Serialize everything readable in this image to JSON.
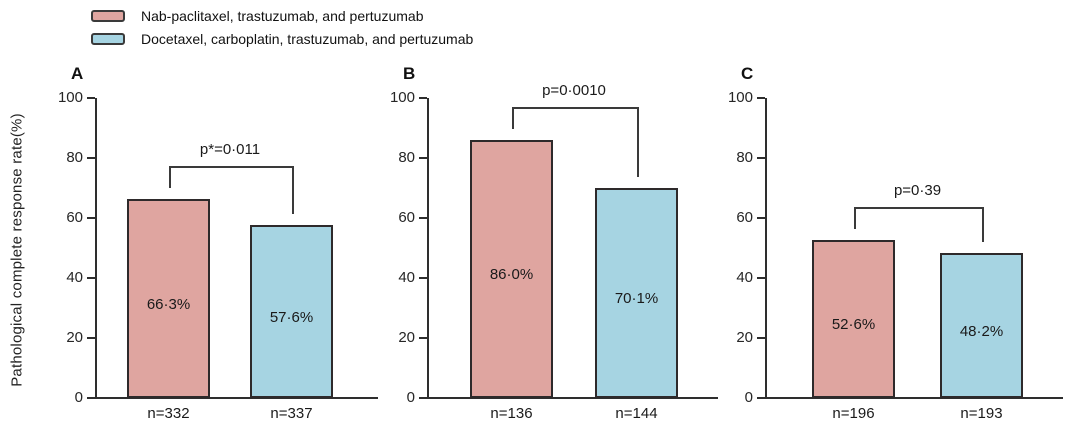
{
  "ylabel": "Pathological complete response rate(%)",
  "legend": {
    "items": [
      {
        "label": "Nab-paclitaxel, trastuzumab, and pertuzumab",
        "color": "#dfa5a0"
      },
      {
        "label": "Docetaxel, carboplatin, trastuzumab, and pertuzumab",
        "color": "#a6d4e2"
      }
    ]
  },
  "colors": {
    "bar_pink": "#dfa5a0",
    "bar_blue": "#a6d4e2",
    "bar_border": "#2e2a2b",
    "axis": "#2e2e2e",
    "bracket": "#3a3a3a",
    "text": "#1a1a1a"
  },
  "chart_data": [
    {
      "type": "bar",
      "panel_label": "A",
      "p_value_text": "p*=0·011",
      "ylabel": "Pathological complete response rate(%)",
      "ylim": [
        0,
        100
      ],
      "yticks": [
        0,
        20,
        40,
        60,
        80,
        100
      ],
      "categories": [
        "n=332",
        "n=337"
      ],
      "series": [
        {
          "name": "Nab-paclitaxel, trastuzumab, and pertuzumab",
          "value": 66.3,
          "bar_label": "66·3%",
          "n": 332
        },
        {
          "name": "Docetaxel, carboplatin, trastuzumab, and pertuzumab",
          "value": 57.6,
          "bar_label": "57·6%",
          "n": 337
        }
      ]
    },
    {
      "type": "bar",
      "panel_label": "B",
      "p_value_text": "p=0·0010",
      "ylabel": "Pathological complete response rate(%)",
      "ylim": [
        0,
        100
      ],
      "yticks": [
        0,
        20,
        40,
        60,
        80,
        100
      ],
      "categories": [
        "n=136",
        "n=144"
      ],
      "series": [
        {
          "name": "Nab-paclitaxel, trastuzumab, and pertuzumab",
          "value": 86.0,
          "bar_label": "86·0%",
          "n": 136
        },
        {
          "name": "Docetaxel, carboplatin, trastuzumab, and pertuzumab",
          "value": 70.1,
          "bar_label": "70·1%",
          "n": 144
        }
      ]
    },
    {
      "type": "bar",
      "panel_label": "C",
      "p_value_text": "p=0·39",
      "ylabel": "Pathological complete response rate(%)",
      "ylim": [
        0,
        100
      ],
      "yticks": [
        0,
        20,
        40,
        60,
        80,
        100
      ],
      "categories": [
        "n=196",
        "n=193"
      ],
      "series": [
        {
          "name": "Nab-paclitaxel, trastuzumab, and pertuzumab",
          "value": 52.6,
          "bar_label": "52·6%",
          "n": 196
        },
        {
          "name": "Docetaxel, carboplatin, trastuzumab, and pertuzumab",
          "value": 48.2,
          "bar_label": "48·2%",
          "n": 193
        }
      ]
    }
  ]
}
